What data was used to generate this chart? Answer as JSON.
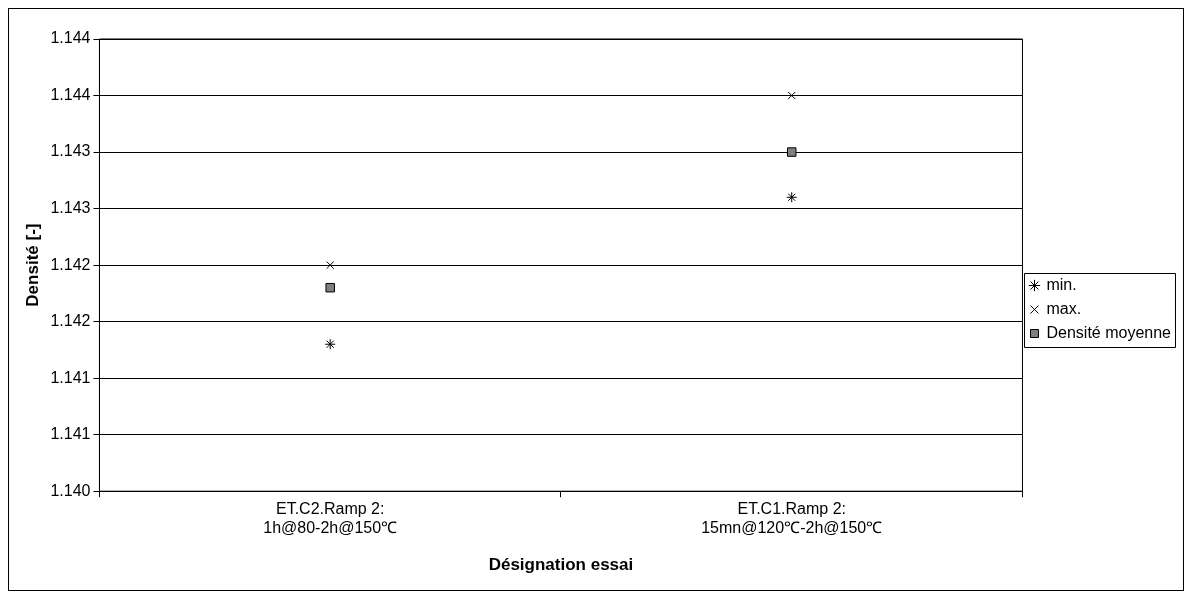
{
  "chart_data": {
    "type": "scatter",
    "xlabel": "Désignation essai",
    "ylabel": "Densité [-]",
    "categories": [
      "ET.C2.Ramp 2:\n1h@80-2h@150℃",
      "ET.C1.Ramp 2:\n15mn@120℃-2h@150℃"
    ],
    "series": [
      {
        "name": "min.",
        "color": "#000000",
        "marker": "cross",
        "values": [
          1.1413,
          1.1426
        ]
      },
      {
        "name": "max.",
        "color": "#000000",
        "marker": "cross",
        "values": [
          1.142,
          1.1435
        ]
      },
      {
        "name": "Densité moyenne",
        "color": "#808080",
        "marker": "square",
        "values": [
          1.1418,
          1.143
        ]
      }
    ],
    "ylim": [
      1.14,
      1.144
    ],
    "yticks": [
      {
        "value": 1.14,
        "label": "1.140"
      },
      {
        "value": 1.1405,
        "label": "1.141"
      },
      {
        "value": 1.141,
        "label": "1.141"
      },
      {
        "value": 1.1415,
        "label": "1.142"
      },
      {
        "value": 1.142,
        "label": "1.142"
      },
      {
        "value": 1.1425,
        "label": "1.143"
      },
      {
        "value": 1.143,
        "label": "1.143"
      },
      {
        "value": 1.1435,
        "label": "1.144"
      },
      {
        "value": 1.144,
        "label": "1.144"
      }
    ],
    "grid": "y",
    "legend": "right"
  }
}
